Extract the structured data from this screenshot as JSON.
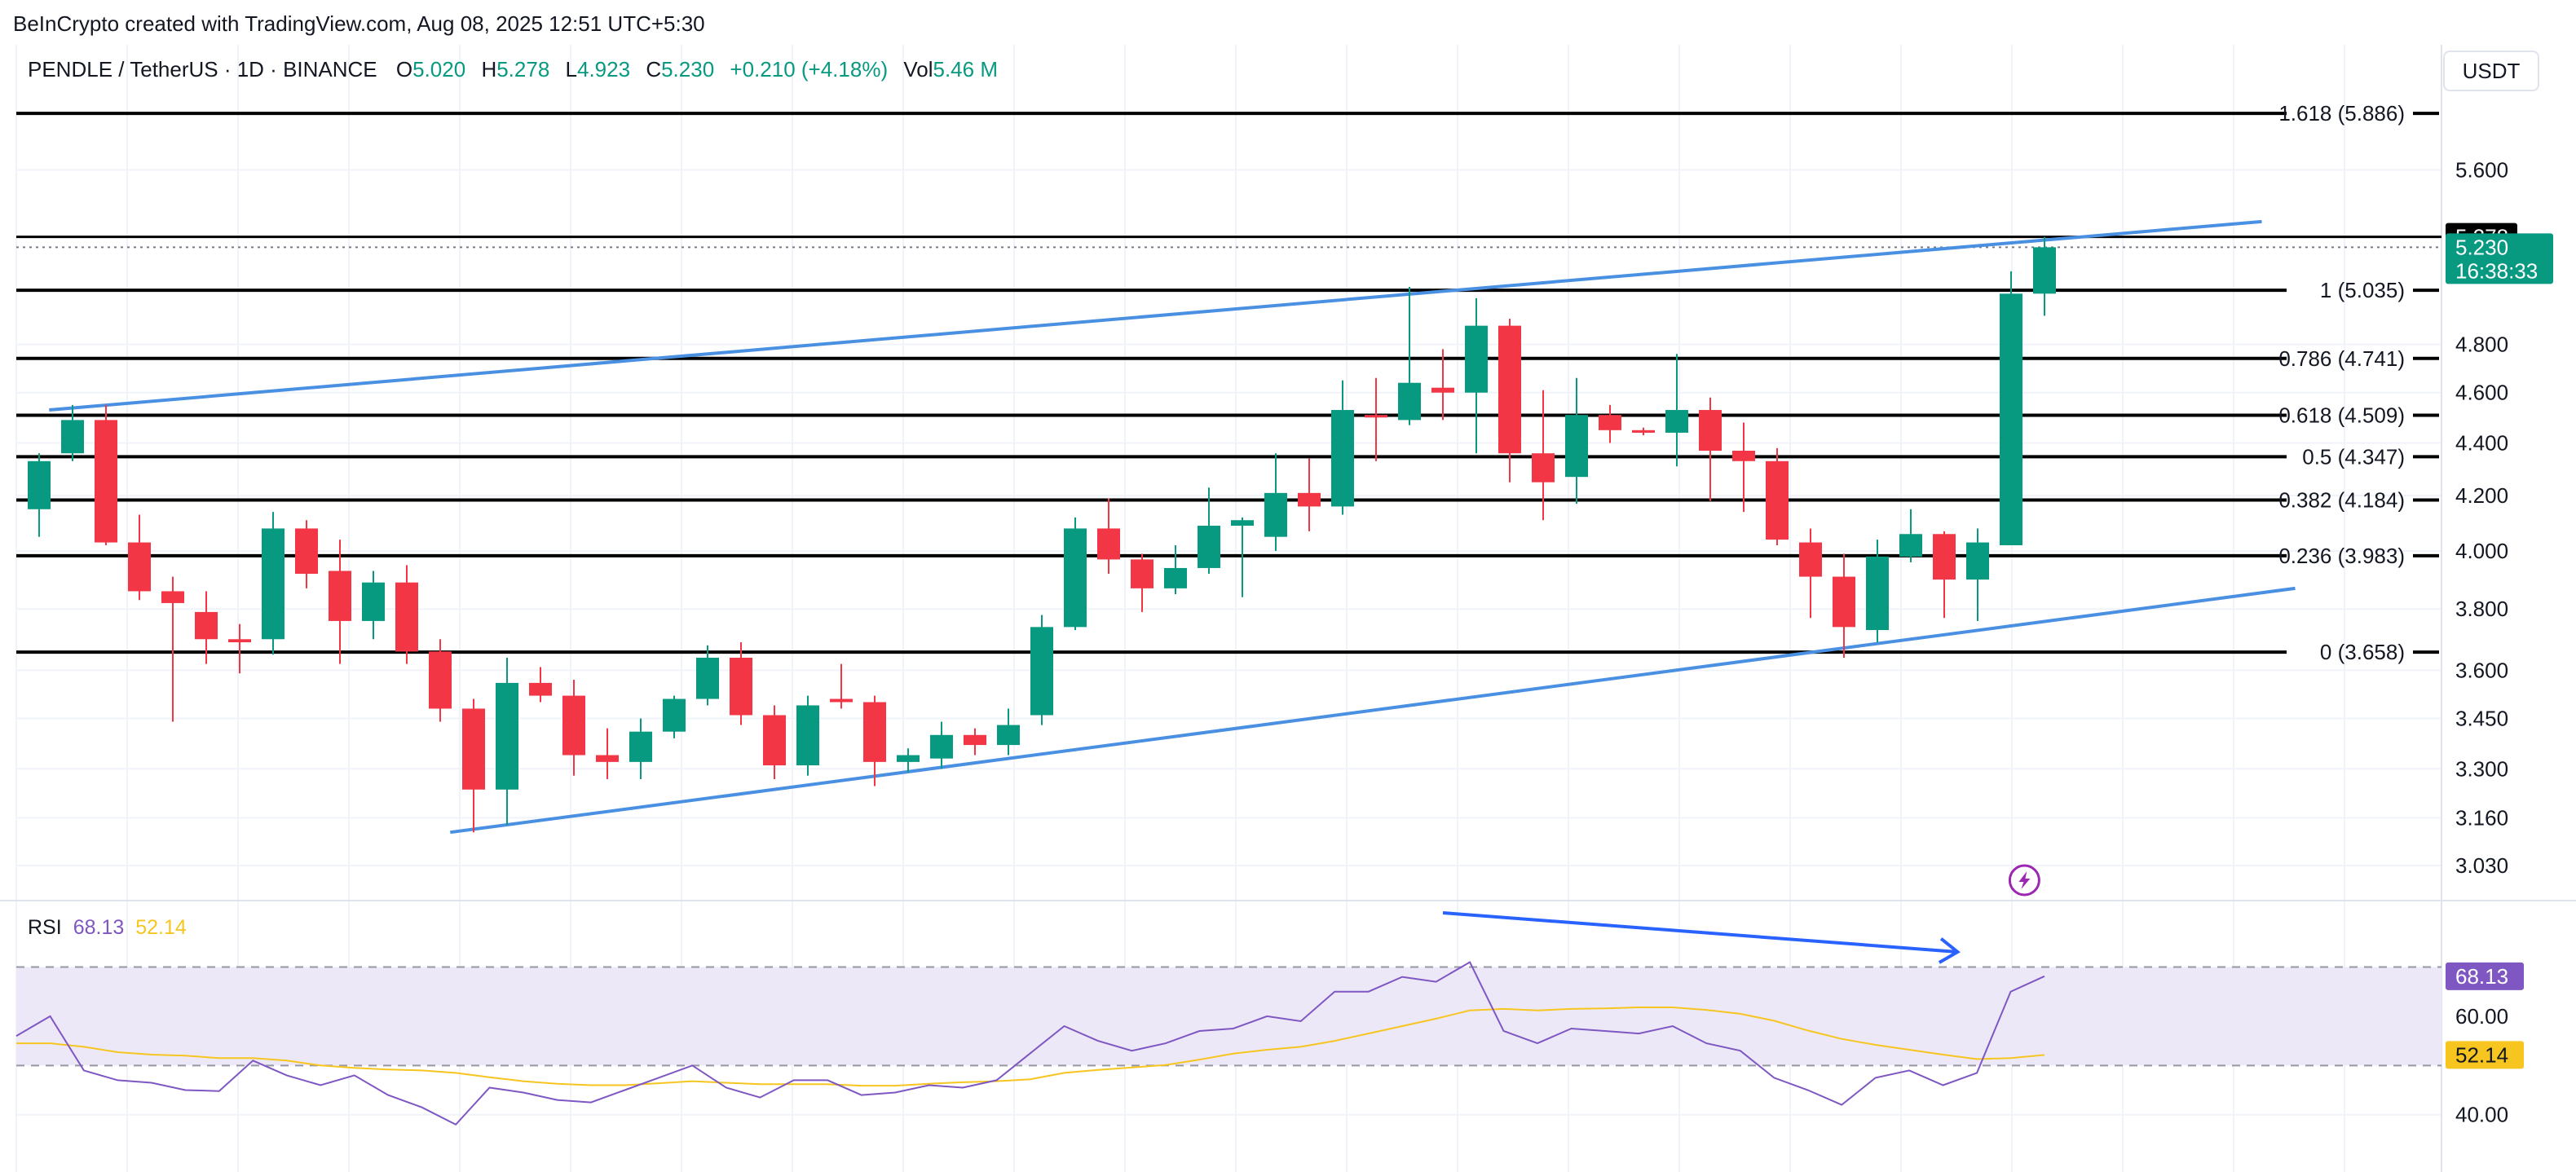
{
  "header": {
    "credit": "BeInCrypto created with TradingView.com, Aug 08, 2025 12:51 UTC+5:30"
  },
  "legend": {
    "symbol": "PENDLE / TetherUS · 1D · BINANCE",
    "o_label": "O",
    "o_value": "5.020",
    "h_label": "H",
    "h_value": "5.278",
    "l_label": "L",
    "l_value": "4.923",
    "c_label": "C",
    "c_value": "5.230",
    "change": "+0.210 (+4.18%)",
    "vol_label": "Vol",
    "vol_value": "5.46 M"
  },
  "currency_button": "USDT",
  "colors": {
    "up": "#089981",
    "down": "#f23645",
    "fib": "#000000",
    "trendline": "#4a90e2",
    "rsi_line": "#7e57c2",
    "rsi_ma": "#f7c520",
    "rsi_band": "#ede8f8",
    "divergence_arrow": "#2962ff"
  },
  "icons": {
    "flash_marker": "lightning-icon"
  },
  "price_scale": {
    "ticks": [
      "5.600",
      "4.800",
      "4.600",
      "4.400",
      "4.200",
      "4.000",
      "3.800",
      "3.600",
      "3.450",
      "3.300",
      "3.160",
      "3.030"
    ],
    "high_badge": "5.278",
    "last_badge_price": "5.230",
    "last_badge_timer": "16:38:33"
  },
  "rsi_scale": {
    "ticks": [
      "60.00",
      "40.00"
    ],
    "rsi_badge": "68.13",
    "ma_badge": "52.14"
  },
  "rsi_legend": {
    "name": "RSI",
    "value": "68.13",
    "ma_value": "52.14"
  },
  "chart_data": [
    {
      "type": "candlestick",
      "title": "PENDLE / TetherUS · 1D · BINANCE",
      "y_scale": "log",
      "ylim": [
        2.98,
        6.12
      ],
      "grid": true,
      "candles": [
        {
          "o": 4.15,
          "h": 4.36,
          "l": 4.05,
          "c": 4.33
        },
        {
          "o": 4.36,
          "h": 4.55,
          "l": 4.33,
          "c": 4.49
        },
        {
          "o": 4.49,
          "h": 4.55,
          "l": 4.02,
          "c": 4.03
        },
        {
          "o": 4.03,
          "h": 4.13,
          "l": 3.83,
          "c": 3.86
        },
        {
          "o": 3.86,
          "h": 3.91,
          "l": 3.44,
          "c": 3.82
        },
        {
          "o": 3.79,
          "h": 3.86,
          "l": 3.62,
          "c": 3.7
        },
        {
          "o": 3.7,
          "h": 3.75,
          "l": 3.59,
          "c": 3.69
        },
        {
          "o": 3.7,
          "h": 4.14,
          "l": 3.65,
          "c": 4.08
        },
        {
          "o": 4.08,
          "h": 4.11,
          "l": 3.87,
          "c": 3.92
        },
        {
          "o": 3.93,
          "h": 4.04,
          "l": 3.62,
          "c": 3.76
        },
        {
          "o": 3.76,
          "h": 3.93,
          "l": 3.7,
          "c": 3.89
        },
        {
          "o": 3.89,
          "h": 3.95,
          "l": 3.62,
          "c": 3.66
        },
        {
          "o": 3.66,
          "h": 3.7,
          "l": 3.44,
          "c": 3.48
        },
        {
          "o": 3.48,
          "h": 3.51,
          "l": 3.12,
          "c": 3.24
        },
        {
          "o": 3.24,
          "h": 3.64,
          "l": 3.14,
          "c": 3.56
        },
        {
          "o": 3.56,
          "h": 3.61,
          "l": 3.5,
          "c": 3.52
        },
        {
          "o": 3.52,
          "h": 3.57,
          "l": 3.28,
          "c": 3.34
        },
        {
          "o": 3.34,
          "h": 3.42,
          "l": 3.27,
          "c": 3.32
        },
        {
          "o": 3.32,
          "h": 3.45,
          "l": 3.27,
          "c": 3.41
        },
        {
          "o": 3.41,
          "h": 3.52,
          "l": 3.39,
          "c": 3.51
        },
        {
          "o": 3.51,
          "h": 3.68,
          "l": 3.49,
          "c": 3.64
        },
        {
          "o": 3.64,
          "h": 3.69,
          "l": 3.43,
          "c": 3.46
        },
        {
          "o": 3.46,
          "h": 3.49,
          "l": 3.27,
          "c": 3.31
        },
        {
          "o": 3.31,
          "h": 3.52,
          "l": 3.28,
          "c": 3.49
        },
        {
          "o": 3.51,
          "h": 3.62,
          "l": 3.48,
          "c": 3.5
        },
        {
          "o": 3.5,
          "h": 3.52,
          "l": 3.25,
          "c": 3.32
        },
        {
          "o": 3.32,
          "h": 3.36,
          "l": 3.29,
          "c": 3.34
        },
        {
          "o": 3.33,
          "h": 3.44,
          "l": 3.3,
          "c": 3.4
        },
        {
          "o": 3.4,
          "h": 3.42,
          "l": 3.34,
          "c": 3.37
        },
        {
          "o": 3.37,
          "h": 3.48,
          "l": 3.34,
          "c": 3.43
        },
        {
          "o": 3.46,
          "h": 3.78,
          "l": 3.43,
          "c": 3.74
        },
        {
          "o": 3.74,
          "h": 4.12,
          "l": 3.73,
          "c": 4.08
        },
        {
          "o": 4.08,
          "h": 4.19,
          "l": 3.92,
          "c": 3.97
        },
        {
          "o": 3.97,
          "h": 3.99,
          "l": 3.79,
          "c": 3.87
        },
        {
          "o": 3.87,
          "h": 4.02,
          "l": 3.85,
          "c": 3.94
        },
        {
          "o": 3.94,
          "h": 4.23,
          "l": 3.92,
          "c": 4.09
        },
        {
          "o": 4.09,
          "h": 4.12,
          "l": 3.84,
          "c": 4.11
        },
        {
          "o": 4.05,
          "h": 4.36,
          "l": 4.0,
          "c": 4.21
        },
        {
          "o": 4.21,
          "h": 4.34,
          "l": 4.07,
          "c": 4.16
        },
        {
          "o": 4.16,
          "h": 4.65,
          "l": 4.13,
          "c": 4.53
        },
        {
          "o": 4.51,
          "h": 4.66,
          "l": 4.33,
          "c": 4.5
        },
        {
          "o": 4.49,
          "h": 5.05,
          "l": 4.47,
          "c": 4.64
        },
        {
          "o": 4.62,
          "h": 4.78,
          "l": 4.49,
          "c": 4.6
        },
        {
          "o": 4.6,
          "h": 5.0,
          "l": 4.36,
          "c": 4.88
        },
        {
          "o": 4.88,
          "h": 4.91,
          "l": 4.25,
          "c": 4.36
        },
        {
          "o": 4.36,
          "h": 4.61,
          "l": 4.11,
          "c": 4.25
        },
        {
          "o": 4.27,
          "h": 4.66,
          "l": 4.17,
          "c": 4.51
        },
        {
          "o": 4.51,
          "h": 4.55,
          "l": 4.4,
          "c": 4.45
        },
        {
          "o": 4.45,
          "h": 4.46,
          "l": 4.43,
          "c": 4.44
        },
        {
          "o": 4.44,
          "h": 4.76,
          "l": 4.31,
          "c": 4.53
        },
        {
          "o": 4.53,
          "h": 4.58,
          "l": 4.18,
          "c": 4.37
        },
        {
          "o": 4.37,
          "h": 4.48,
          "l": 4.14,
          "c": 4.33
        },
        {
          "o": 4.33,
          "h": 4.38,
          "l": 4.02,
          "c": 4.04
        },
        {
          "o": 4.03,
          "h": 4.08,
          "l": 3.77,
          "c": 3.91
        },
        {
          "o": 3.91,
          "h": 3.99,
          "l": 3.64,
          "c": 3.74
        },
        {
          "o": 3.73,
          "h": 4.04,
          "l": 3.69,
          "c": 3.98
        },
        {
          "o": 3.98,
          "h": 4.15,
          "l": 3.96,
          "c": 4.06
        },
        {
          "o": 4.06,
          "h": 4.07,
          "l": 3.77,
          "c": 3.9
        },
        {
          "o": 3.9,
          "h": 4.08,
          "l": 3.76,
          "c": 4.03
        },
        {
          "o": 4.02,
          "h": 5.12,
          "l": 4.02,
          "c": 5.02
        },
        {
          "o": 5.02,
          "h": 5.278,
          "l": 4.923,
          "c": 5.23
        }
      ],
      "fib_levels": [
        {
          "label": "1.618 (5.886)",
          "value": 5.886
        },
        {
          "label": "1 (5.035)",
          "value": 5.035
        },
        {
          "label": "0.786 (4.741)",
          "value": 4.741
        },
        {
          "label": "0.618 (4.509)",
          "value": 4.509
        },
        {
          "label": "0.5 (4.347)",
          "value": 4.347
        },
        {
          "label": "0.382 (4.184)",
          "value": 4.184
        },
        {
          "label": "0.236 (3.983)",
          "value": 3.983
        },
        {
          "label": "0 (3.658)",
          "value": 3.658
        }
      ],
      "horizontal_lines": [
        5.278
      ],
      "trendlines": [
        {
          "from": {
            "bar": 0.3,
            "price": 4.53
          },
          "to": {
            "bar": 66.5,
            "price": 5.35
          }
        },
        {
          "from": {
            "bar": 12.3,
            "price": 3.12
          },
          "to": {
            "bar": 67.5,
            "price": 3.87
          }
        }
      ]
    },
    {
      "type": "line",
      "title": "RSI",
      "ylim": [
        33,
        83
      ],
      "bands": [
        70,
        50
      ],
      "series": [
        {
          "name": "RSI",
          "values": [
            56,
            60,
            49,
            47,
            46.5,
            45,
            44.8,
            51,
            48,
            46,
            48,
            44,
            41.5,
            38,
            45.5,
            44.5,
            43,
            42.5,
            45,
            47.5,
            50,
            45.5,
            43.5,
            47,
            47,
            44,
            44.5,
            46,
            45.5,
            47,
            52.5,
            58,
            55,
            53,
            54.5,
            57,
            57.5,
            60,
            59,
            65,
            65,
            68,
            67,
            71,
            57,
            54.5,
            57.5,
            57,
            56.5,
            58,
            54.5,
            53,
            47.5,
            45,
            42,
            47.5,
            49,
            46,
            48.5,
            65,
            68.13
          ]
        },
        {
          "name": "MA",
          "values": [
            54.5,
            54.5,
            53.8,
            52.7,
            52.2,
            52,
            51.5,
            51.5,
            51,
            50,
            49.5,
            49.2,
            49,
            48.5,
            47.6,
            46.8,
            46.3,
            46,
            46,
            46.4,
            46.8,
            46.5,
            46.2,
            46.2,
            46.2,
            45.9,
            45.9,
            46.3,
            46.6,
            46.8,
            47.2,
            48.5,
            49.1,
            49.6,
            50.1,
            51.2,
            52.4,
            53.2,
            53.8,
            55,
            56.5,
            58,
            59.5,
            61.2,
            61.5,
            61.2,
            61.5,
            61.6,
            61.8,
            61.8,
            61.3,
            60.5,
            59.1,
            57.1,
            55.4,
            54.2,
            53.2,
            52.2,
            51.3,
            51.5,
            52.14
          ]
        }
      ]
    }
  ]
}
